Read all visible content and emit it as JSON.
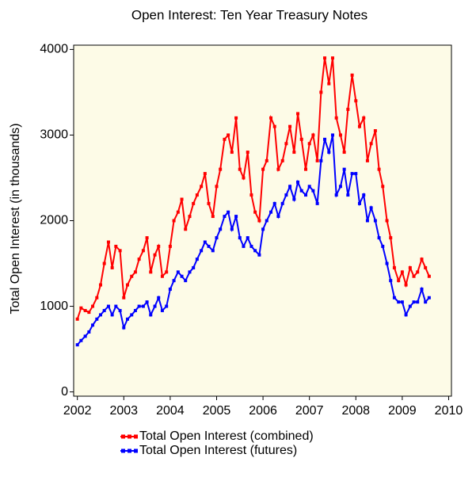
{
  "chart_data": {
    "type": "line",
    "title": "Open Interest: Ten Year Treasury Notes",
    "y_label": "Total Open Interest (in thousands)",
    "xlim": [
      2001.92,
      2010.06
    ],
    "xticks": [
      2002,
      2003,
      2004,
      2005,
      2006,
      2007,
      2008,
      2009,
      2010
    ],
    "ylim": [
      -50,
      4050
    ],
    "yticks": [
      0,
      1000,
      2000,
      3000,
      4000
    ],
    "background": "#fdfbe7",
    "x": [
      2002.0,
      2002.08,
      2002.17,
      2002.25,
      2002.33,
      2002.42,
      2002.5,
      2002.58,
      2002.67,
      2002.75,
      2002.83,
      2002.92,
      2003.0,
      2003.08,
      2003.17,
      2003.25,
      2003.33,
      2003.42,
      2003.5,
      2003.58,
      2003.67,
      2003.75,
      2003.83,
      2003.92,
      2004.0,
      2004.08,
      2004.17,
      2004.25,
      2004.33,
      2004.42,
      2004.5,
      2004.58,
      2004.67,
      2004.75,
      2004.83,
      2004.92,
      2005.0,
      2005.08,
      2005.17,
      2005.25,
      2005.33,
      2005.42,
      2005.5,
      2005.58,
      2005.67,
      2005.75,
      2005.83,
      2005.92,
      2006.0,
      2006.08,
      2006.17,
      2006.25,
      2006.33,
      2006.42,
      2006.5,
      2006.58,
      2006.67,
      2006.75,
      2006.83,
      2006.92,
      2007.0,
      2007.08,
      2007.17,
      2007.25,
      2007.33,
      2007.42,
      2007.5,
      2007.58,
      2007.67,
      2007.75,
      2007.83,
      2007.92,
      2008.0,
      2008.08,
      2008.17,
      2008.25,
      2008.33,
      2008.42,
      2008.5,
      2008.58,
      2008.67,
      2008.75,
      2008.83,
      2008.92,
      2009.0,
      2009.08,
      2009.17,
      2009.25,
      2009.33,
      2009.42,
      2009.5,
      2009.58
    ],
    "series": [
      {
        "name": "Total Open Interest (combined)",
        "color": "#ff0000",
        "values": [
          850,
          980,
          950,
          930,
          1000,
          1100,
          1250,
          1500,
          1750,
          1450,
          1700,
          1650,
          1100,
          1250,
          1350,
          1400,
          1550,
          1650,
          1800,
          1400,
          1600,
          1700,
          1350,
          1400,
          1700,
          2000,
          2100,
          2250,
          1900,
          2050,
          2200,
          2300,
          2400,
          2550,
          2200,
          2050,
          2400,
          2600,
          2950,
          3000,
          2800,
          3200,
          2600,
          2500,
          2800,
          2300,
          2100,
          2000,
          2600,
          2700,
          3200,
          3100,
          2600,
          2700,
          2900,
          3100,
          2800,
          3250,
          2950,
          2600,
          2900,
          3000,
          2700,
          3500,
          3900,
          3600,
          3900,
          3200,
          3000,
          2800,
          3300,
          3700,
          3400,
          3100,
          3200,
          2700,
          2900,
          3050,
          2600,
          2400,
          2000,
          1800,
          1450,
          1300,
          1400,
          1250,
          1450,
          1350,
          1400,
          1550,
          1450,
          1350
        ]
      },
      {
        "name": "Total Open Interest (futures)",
        "color": "#0000ff",
        "values": [
          550,
          600,
          650,
          700,
          780,
          850,
          900,
          950,
          1000,
          900,
          1000,
          950,
          750,
          850,
          900,
          950,
          1000,
          1000,
          1050,
          900,
          1000,
          1100,
          950,
          1000,
          1200,
          1300,
          1400,
          1350,
          1300,
          1400,
          1450,
          1550,
          1650,
          1750,
          1700,
          1650,
          1800,
          1900,
          2050,
          2100,
          1900,
          2050,
          1800,
          1700,
          1800,
          1700,
          1650,
          1600,
          1900,
          2000,
          2100,
          2200,
          2050,
          2200,
          2300,
          2400,
          2250,
          2450,
          2350,
          2300,
          2400,
          2350,
          2200,
          2700,
          2950,
          2800,
          3000,
          2300,
          2400,
          2600,
          2300,
          2550,
          2550,
          2200,
          2300,
          2000,
          2150,
          2000,
          1800,
          1700,
          1500,
          1300,
          1100,
          1050,
          1050,
          900,
          1000,
          1050,
          1050,
          1200,
          1050,
          1100
        ]
      }
    ]
  }
}
